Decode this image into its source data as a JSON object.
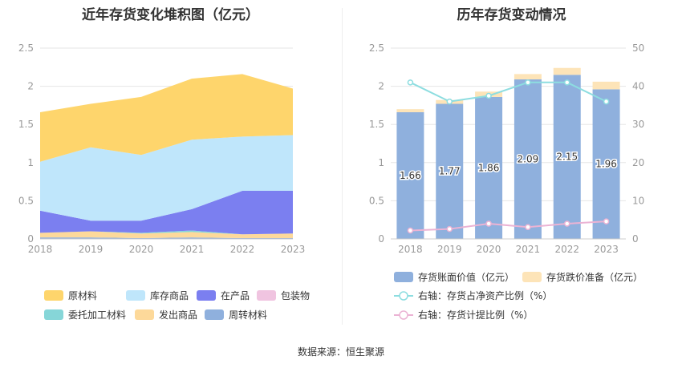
{
  "titles": {
    "left": "近年存货变化堆积图（亿元）",
    "right": "历年存货变动情况"
  },
  "source": "数据来源：恒生聚源",
  "chart_data": [
    {
      "type": "area",
      "stacked": true,
      "title": "近年存货变化堆积图（亿元）",
      "x": [
        "2018",
        "2019",
        "2020",
        "2021",
        "2022",
        "2023"
      ],
      "ylim": [
        0,
        2.5
      ],
      "yticks": [
        "0",
        "0.5",
        "1",
        "1.5",
        "2",
        "2.5"
      ],
      "grid": true,
      "legend_position": "bottom",
      "series": [
        {
          "name": "周转材料",
          "color": "#8fb0dd",
          "values": [
            0.02,
            0.02,
            0.01,
            0.02,
            0.01,
            0.01
          ]
        },
        {
          "name": "发出商品",
          "color": "#fdd99a",
          "values": [
            0.06,
            0.08,
            0.06,
            0.07,
            0.05,
            0.06
          ]
        },
        {
          "name": "委托加工材料",
          "color": "#86d6d8",
          "values": [
            0.0,
            0.0,
            0.01,
            0.02,
            0.0,
            0.0
          ]
        },
        {
          "name": "包装物",
          "color": "#f0c4e0",
          "values": [
            0.0,
            0.0,
            0.0,
            0.0,
            0.0,
            0.0
          ]
        },
        {
          "name": "在产品",
          "color": "#7b7ff0",
          "values": [
            0.29,
            0.14,
            0.16,
            0.28,
            0.57,
            0.56
          ]
        },
        {
          "name": "库存商品",
          "color": "#bfe6fb",
          "values": [
            0.64,
            0.96,
            0.86,
            0.91,
            0.71,
            0.73
          ]
        },
        {
          "name": "原材料",
          "color": "#fed56c",
          "values": [
            0.65,
            0.57,
            0.76,
            0.8,
            0.82,
            0.61
          ]
        }
      ],
      "legend_order": [
        "原材料",
        "库存商品",
        "在产品",
        "包装物",
        "委托加工材料",
        "发出商品",
        "周转材料"
      ]
    },
    {
      "type": "bar",
      "stacked": true,
      "title": "历年存货变动情况",
      "categories": [
        "2018",
        "2019",
        "2020",
        "2021",
        "2022",
        "2023"
      ],
      "ylim": [
        0,
        2.5
      ],
      "yticks": [
        "0",
        "0.5",
        "1",
        "1.5",
        "2",
        "2.5"
      ],
      "y2lim": [
        0,
        50
      ],
      "y2ticks": [
        "0",
        "10",
        "20",
        "30",
        "40",
        "50"
      ],
      "legend_position": "bottom",
      "series": [
        {
          "name": "存货账面价值（亿元）",
          "color": "#8fb0dd",
          "values": [
            1.66,
            1.77,
            1.86,
            2.09,
            2.15,
            1.96
          ],
          "labels": [
            "1.66",
            "1.77",
            "1.86",
            "2.09",
            "2.15",
            "1.96"
          ]
        },
        {
          "name": "存货跌价准备（亿元）",
          "color": "#fde4b8",
          "values": [
            0.04,
            0.05,
            0.07,
            0.07,
            0.09,
            0.1
          ]
        }
      ],
      "lines": [
        {
          "name": "右轴：存货占净资产比例（%）",
          "color": "#8ddde0",
          "values": [
            41,
            36,
            37.5,
            41,
            41,
            36
          ]
        },
        {
          "name": "右轴：存货计提比例（%）",
          "color": "#ebb3d4",
          "values": [
            2.2,
            2.6,
            4,
            3.1,
            4,
            4.6
          ]
        }
      ]
    }
  ]
}
